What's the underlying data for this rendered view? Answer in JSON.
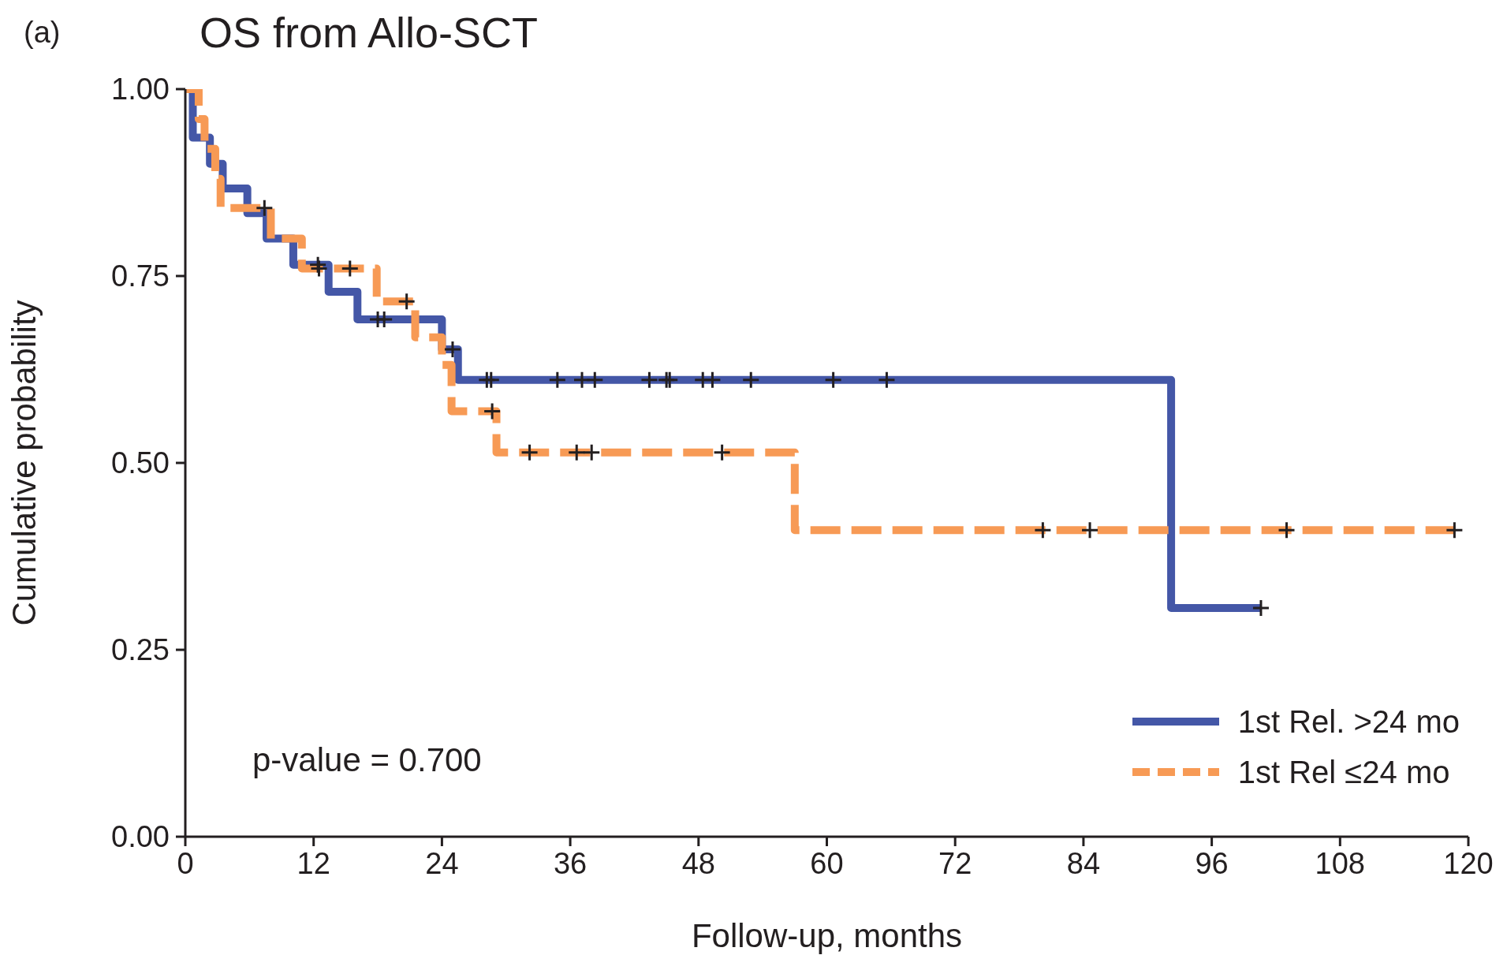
{
  "chart_data": {
    "type": "step",
    "title": "OS from Allo-SCT",
    "xlabel": "Follow-up, months",
    "ylabel": "Cumulative probability",
    "annotations": [
      "(a)",
      "p-value = 0.700"
    ],
    "xlim": [
      0,
      120
    ],
    "xticks": [
      0,
      12,
      24,
      36,
      48,
      60,
      72,
      84,
      96,
      108,
      120
    ],
    "ylim": [
      0,
      1
    ],
    "yticks": [
      {
        "value": 0,
        "label": "0.00"
      },
      {
        "value": 0.25,
        "label": "0.25"
      },
      {
        "value": 0.5,
        "label": "0.50"
      },
      {
        "value": 0.75,
        "label": "0.75"
      },
      {
        "value": 1,
        "label": "1.00"
      }
    ],
    "grid": false,
    "legend": "bottom right",
    "series": [
      {
        "name": "1st Rel. >24 mo",
        "color": "#4457a7",
        "line_style": "solid",
        "x": [
          0,
          0.7,
          2.3,
          3.5,
          5.8,
          7.6,
          10.1,
          13.4,
          16.1,
          24.0,
          25.5,
          92.2,
          100.6
        ],
        "values": [
          1.0,
          0.935,
          0.9,
          0.867,
          0.834,
          0.8,
          0.765,
          0.729,
          0.692,
          0.652,
          0.611,
          0.306,
          0.306
        ]
      },
      {
        "name": "1st Rel ≤24 mo",
        "color": "#f79a55",
        "line_style": "dashed",
        "x": [
          0,
          1.25,
          1.8,
          2.8,
          3.3,
          8.0,
          10.9,
          17.9,
          21.5,
          24.0,
          24.9,
          29.1,
          57.0,
          118.7
        ],
        "values": [
          1.0,
          0.96,
          0.92,
          0.88,
          0.841,
          0.8,
          0.76,
          0.716,
          0.668,
          0.631,
          0.569,
          0.514,
          0.41,
          0.41
        ]
      },
      {
        "type": "scatter",
        "color": "#231f20",
        "marker": "cross",
        "x": [
          12.4,
          18.0,
          18.6,
          25.0,
          28.2,
          28.6,
          34.8,
          37.1,
          38.3,
          43.4,
          45.0,
          45.3,
          48.4,
          49.3,
          52.9,
          60.6,
          65.6,
          100.6
        ],
        "values": [
          0.765,
          0.692,
          0.692,
          0.652,
          0.611,
          0.611,
          0.611,
          0.611,
          0.611,
          0.611,
          0.611,
          0.611,
          0.611,
          0.611,
          0.611,
          0.611,
          0.611,
          0.306
        ]
      },
      {
        "type": "scatter",
        "color": "#231f20",
        "marker": "cross",
        "x": [
          7.4,
          12.5,
          15.4,
          20.7,
          28.7,
          32.2,
          36.6,
          38.0,
          50.2,
          80.2,
          84.6,
          103.0,
          118.7
        ],
        "values": [
          0.841,
          0.76,
          0.76,
          0.716,
          0.569,
          0.514,
          0.514,
          0.514,
          0.514,
          0.41,
          0.41,
          0.41,
          0.41
        ]
      }
    ]
  }
}
